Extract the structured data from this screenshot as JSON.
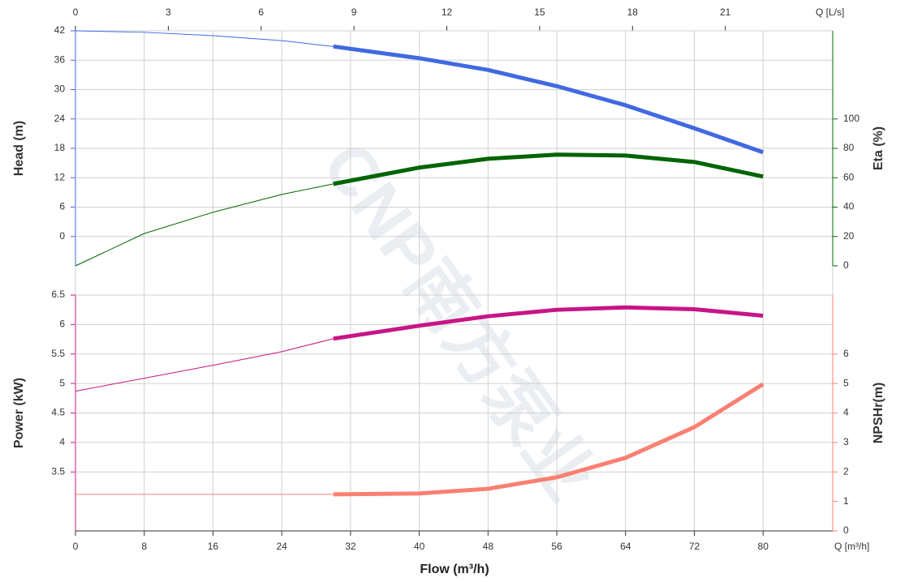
{
  "chart_data": {
    "type": "line",
    "xlabel": "Flow (m³/h)",
    "x_unit_label": "Q [m³/h]",
    "x2_unit_label": "Q [L/s]",
    "watermark": "CNP南方泵业",
    "xlim": [
      0,
      88.1
    ],
    "xticks": [
      0,
      8,
      16,
      24,
      32,
      40,
      48,
      56,
      64,
      72,
      80
    ],
    "x2lim": [
      0,
      24.47
    ],
    "x2ticks": [
      0,
      3,
      6,
      9,
      12,
      15,
      18,
      21
    ],
    "operating_range": [
      30,
      80
    ],
    "x": [
      0,
      8,
      16,
      24,
      30,
      40,
      48,
      56,
      64,
      72,
      80
    ],
    "axes": {
      "head": {
        "label": "Head (m)",
        "lim": [
          -6,
          42
        ],
        "ticks": [
          0,
          6,
          12,
          18,
          24,
          30,
          36,
          42
        ],
        "side": "left",
        "panel": "top",
        "color": "#4169e1"
      },
      "eta": {
        "label": "Eta (%)",
        "lim": [
          0,
          160
        ],
        "ticks": [
          0,
          20,
          40,
          60,
          80,
          100
        ],
        "side": "right",
        "panel": "top",
        "color": "#006400"
      },
      "power": {
        "label": "Power (kW)",
        "lim": [
          2.5,
          6.5
        ],
        "ticks": [
          3.5,
          4,
          4.5,
          5,
          5.5,
          6,
          6.5
        ],
        "side": "left",
        "panel": "bottom",
        "color": "#c71585"
      },
      "npsh": {
        "label": "NPSHr(m)",
        "lim": [
          0,
          8
        ],
        "ticks": [
          0,
          1,
          2,
          3,
          4,
          5,
          6
        ],
        "side": "right",
        "panel": "bottom",
        "color": "#fa8072"
      }
    },
    "series": [
      {
        "name": "Head (m)",
        "axis": "head",
        "color": "#4169e1",
        "values": [
          42,
          41.7,
          41.0,
          40.0,
          38.8,
          36.4,
          34.0,
          30.7,
          26.8,
          22.1,
          17.2
        ]
      },
      {
        "name": "Eta (%)",
        "axis": "eta",
        "color": "#006400",
        "values": [
          0,
          22,
          36.5,
          48.6,
          55.8,
          66.9,
          72.9,
          75.7,
          75.1,
          70.7,
          60.8
        ]
      },
      {
        "name": "Power (kW)",
        "axis": "power",
        "color": "#c71585",
        "values": [
          4.87,
          5.09,
          5.31,
          5.54,
          5.76,
          5.98,
          6.14,
          6.25,
          6.29,
          6.26,
          6.15
        ]
      },
      {
        "name": "NPSHr(m)",
        "axis": "npsh",
        "color": "#fa8072",
        "values": [
          1.24,
          1.24,
          1.24,
          1.24,
          1.24,
          1.27,
          1.43,
          1.82,
          2.48,
          3.52,
          4.98
        ]
      }
    ]
  }
}
